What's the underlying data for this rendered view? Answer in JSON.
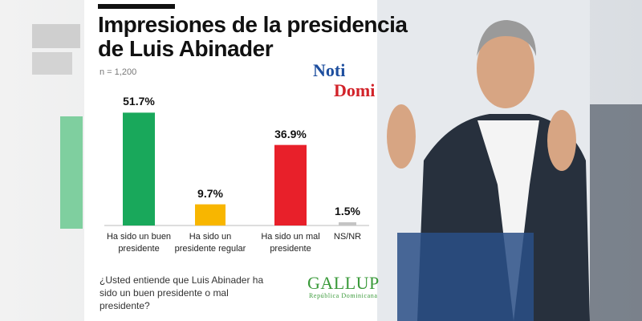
{
  "chart_data": {
    "type": "bar",
    "title": "Impresiones de la presidencia de Luis Abinader",
    "subtitle": "n = 1,200",
    "categories": [
      "Ha sido un buen presidente",
      "Ha sido un presidente regular",
      "Ha sido un mal presidente",
      "NS/NR"
    ],
    "values": [
      51.7,
      9.7,
      36.9,
      1.5
    ],
    "value_labels": [
      "51.7%",
      "9.7%",
      "36.9%",
      "1.5%"
    ],
    "colors": [
      "#19a85b",
      "#f8b600",
      "#e8202a",
      "#c4c4c4"
    ],
    "question": "¿Usted entiende que Luis Abinader ha sido un buen presidente o mal presidente?",
    "logos": {
      "noti": "Noti",
      "domi": "Domi",
      "gallup": "GALLUP",
      "gallup_sub": "República Dominicana"
    }
  }
}
